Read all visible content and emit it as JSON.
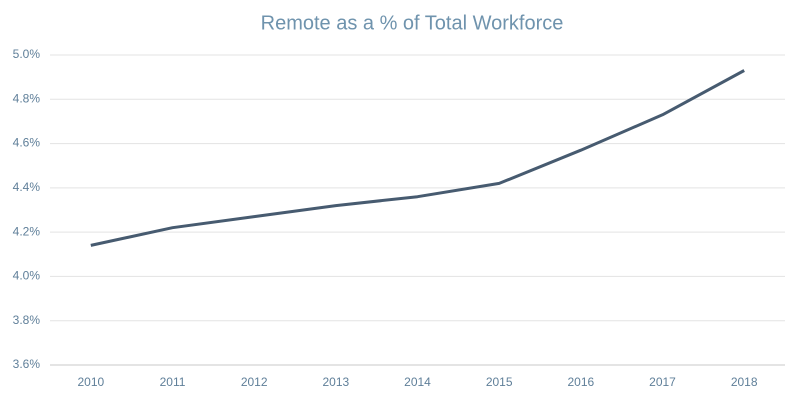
{
  "chart_data": {
    "type": "line",
    "title": "Remote as a % of Total Workforce",
    "categories": [
      "2010",
      "2011",
      "2012",
      "2013",
      "2014",
      "2015",
      "2016",
      "2017",
      "2018"
    ],
    "values": [
      4.14,
      4.22,
      4.27,
      4.32,
      4.36,
      4.42,
      4.57,
      4.73,
      4.93
    ],
    "color": "#475b70",
    "ylim": [
      3.6,
      5.0
    ],
    "yticks": [
      {
        "value": 3.6,
        "label": "3.6%"
      },
      {
        "value": 3.8,
        "label": "3.8%"
      },
      {
        "value": 4.0,
        "label": "4.0%"
      },
      {
        "value": 4.2,
        "label": "4.2%"
      },
      {
        "value": 4.4,
        "label": "4.4%"
      },
      {
        "value": 4.6,
        "label": "4.6%"
      },
      {
        "value": 4.8,
        "label": "4.8%"
      },
      {
        "value": 5.0,
        "label": "5.0%"
      }
    ],
    "grid": true
  }
}
